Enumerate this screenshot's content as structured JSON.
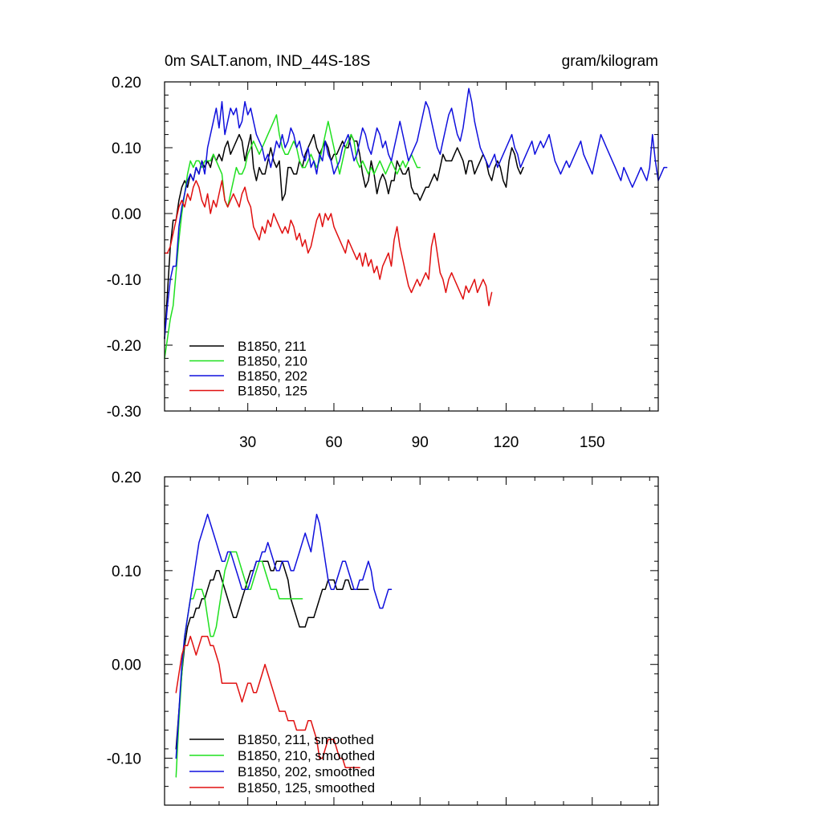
{
  "colors": {
    "B1850_211": "#000000",
    "B1850_210": "#1fe01f",
    "B1850_202": "#1010dd",
    "B1850_125": "#e01010"
  },
  "chart_data": [
    {
      "type": "line",
      "title": "0m SALT.anom, IND_44S-18S",
      "units": "gram/kilogram",
      "xlim": [
        1,
        173
      ],
      "ylim": [
        -0.3,
        0.2
      ],
      "xticks": [
        30,
        60,
        90,
        120,
        150
      ],
      "xtick_labels": [
        "30",
        "60",
        "90",
        "120",
        "150"
      ],
      "yticks": [
        0.2,
        0.1,
        0.0,
        -0.1,
        -0.2,
        -0.3
      ],
      "ytick_labels": [
        "0.20",
        "0.10",
        "0.00",
        "-0.10",
        "-0.20",
        "-0.30"
      ],
      "legend_position": "bottom-left",
      "series": [
        {
          "name": "B1850, 211",
          "color_key": "B1850_211",
          "x_start": 1,
          "values": [
            -0.19,
            -0.12,
            -0.05,
            -0.01,
            -0.01,
            0.02,
            0.04,
            0.05,
            0.04,
            0.06,
            0.05,
            0.07,
            0.06,
            0.08,
            0.07,
            0.08,
            0.07,
            0.09,
            0.08,
            0.09,
            0.08,
            0.1,
            0.11,
            0.09,
            0.1,
            0.11,
            0.12,
            0.11,
            0.08,
            0.1,
            0.12,
            0.07,
            0.05,
            0.07,
            0.06,
            0.06,
            0.08,
            0.1,
            0.08,
            0.07,
            0.08,
            0.02,
            0.03,
            0.07,
            0.07,
            0.06,
            0.06,
            0.08,
            0.07,
            0.09,
            0.1,
            0.11,
            0.12,
            0.1,
            0.09,
            0.1,
            0.11,
            0.1,
            0.08,
            0.09,
            0.09,
            0.1,
            0.11,
            0.1,
            0.1,
            0.12,
            0.11,
            0.11,
            0.09,
            0.06,
            0.04,
            0.05,
            0.08,
            0.06,
            0.03,
            0.05,
            0.06,
            0.05,
            0.03,
            0.05,
            0.05,
            0.08,
            0.07,
            0.06,
            0.06,
            0.07,
            0.04,
            0.03,
            0.03,
            0.02,
            0.03,
            0.04,
            0.04,
            0.05,
            0.06,
            0.05,
            0.07,
            0.09,
            0.08,
            0.08,
            0.08,
            0.09,
            0.1,
            0.09,
            0.08,
            0.06,
            0.08,
            0.08,
            0.06,
            0.07,
            0.08,
            0.09,
            0.08,
            0.06,
            0.05,
            0.07,
            0.08,
            0.07,
            0.05,
            0.04,
            0.08,
            0.1,
            0.09,
            0.07,
            0.06,
            0.07
          ]
        },
        {
          "name": "B1850, 210",
          "color_key": "B1850_210",
          "x_start": 1,
          "values": [
            -0.22,
            -0.19,
            -0.16,
            -0.14,
            -0.09,
            -0.04,
            0.0,
            0.03,
            0.06,
            0.08,
            0.07,
            0.08,
            0.08,
            0.07,
            0.08,
            0.08,
            0.08,
            0.09,
            0.08,
            0.07,
            0.06,
            0.02,
            0.01,
            0.03,
            0.05,
            0.07,
            0.06,
            0.06,
            0.07,
            0.09,
            0.1,
            0.11,
            0.1,
            0.09,
            0.1,
            0.11,
            0.12,
            0.13,
            0.14,
            0.15,
            0.12,
            0.1,
            0.09,
            0.09,
            0.1,
            0.11,
            0.1,
            0.08,
            0.07,
            0.07,
            0.08,
            0.09,
            0.08,
            0.07,
            0.08,
            0.1,
            0.12,
            0.14,
            0.12,
            0.1,
            0.08,
            0.06,
            0.08,
            0.1,
            0.11,
            0.12,
            0.11,
            0.08,
            0.07,
            0.08,
            0.07,
            0.06,
            0.07,
            0.06,
            0.07,
            0.08,
            0.07,
            0.06,
            0.07,
            0.08,
            0.07,
            0.06,
            0.07,
            0.08,
            0.07,
            0.08,
            0.09,
            0.08,
            0.07,
            0.07
          ]
        },
        {
          "name": "B1850, 202",
          "color_key": "B1850_202",
          "x_start": 1,
          "values": [
            -0.19,
            -0.14,
            -0.1,
            -0.08,
            -0.08,
            -0.02,
            0.01,
            0.03,
            0.05,
            0.06,
            0.05,
            0.07,
            0.06,
            0.08,
            0.06,
            0.1,
            0.12,
            0.14,
            0.16,
            0.13,
            0.17,
            0.12,
            0.14,
            0.16,
            0.15,
            0.16,
            0.13,
            0.14,
            0.17,
            0.15,
            0.16,
            0.14,
            0.12,
            0.11,
            0.1,
            0.08,
            0.09,
            0.07,
            0.09,
            0.11,
            0.1,
            0.12,
            0.1,
            0.11,
            0.13,
            0.12,
            0.1,
            0.11,
            0.09,
            0.08,
            0.1,
            0.07,
            0.08,
            0.06,
            0.09,
            0.08,
            0.11,
            0.09,
            0.08,
            0.06,
            0.07,
            0.08,
            0.1,
            0.11,
            0.12,
            0.1,
            0.08,
            0.09,
            0.11,
            0.13,
            0.12,
            0.1,
            0.09,
            0.11,
            0.13,
            0.12,
            0.1,
            0.11,
            0.09,
            0.08,
            0.1,
            0.12,
            0.14,
            0.12,
            0.1,
            0.08,
            0.09,
            0.1,
            0.11,
            0.13,
            0.15,
            0.17,
            0.16,
            0.14,
            0.12,
            0.1,
            0.09,
            0.11,
            0.13,
            0.15,
            0.16,
            0.14,
            0.12,
            0.11,
            0.13,
            0.16,
            0.19,
            0.17,
            0.14,
            0.12,
            0.1,
            0.09,
            0.08,
            0.07,
            0.08,
            0.09,
            0.07,
            0.08,
            0.09,
            0.1,
            0.11,
            0.12,
            0.1,
            0.09,
            0.07,
            0.08,
            0.09,
            0.1,
            0.11,
            0.09,
            0.1,
            0.11,
            0.1,
            0.11,
            0.12,
            0.1,
            0.08,
            0.07,
            0.06,
            0.07,
            0.08,
            0.07,
            0.08,
            0.09,
            0.1,
            0.11,
            0.09,
            0.08,
            0.07,
            0.06,
            0.08,
            0.1,
            0.12,
            0.11,
            0.1,
            0.09,
            0.08,
            0.07,
            0.06,
            0.05,
            0.07,
            0.06,
            0.05,
            0.04,
            0.05,
            0.06,
            0.07,
            0.06,
            0.05,
            0.07,
            0.12,
            0.08,
            0.05,
            0.06,
            0.07,
            0.07
          ]
        },
        {
          "name": "B1850, 125",
          "color_key": "B1850_125",
          "x_start": 1,
          "values": [
            -0.06,
            -0.06,
            -0.05,
            -0.03,
            -0.01,
            0.01,
            0.02,
            0.01,
            0.03,
            0.02,
            0.04,
            0.05,
            0.04,
            0.02,
            0.01,
            0.03,
            0.0,
            0.02,
            0.01,
            0.03,
            0.05,
            0.02,
            0.01,
            0.02,
            0.03,
            0.02,
            0.01,
            0.03,
            0.04,
            0.02,
            0.01,
            -0.02,
            -0.03,
            -0.04,
            -0.02,
            -0.03,
            -0.01,
            -0.02,
            0.0,
            -0.01,
            -0.02,
            -0.03,
            -0.02,
            -0.03,
            -0.01,
            -0.02,
            -0.04,
            -0.03,
            -0.05,
            -0.04,
            -0.06,
            -0.05,
            -0.03,
            -0.01,
            0.0,
            -0.02,
            0.0,
            -0.01,
            0.0,
            -0.02,
            -0.03,
            -0.04,
            -0.05,
            -0.06,
            -0.04,
            -0.05,
            -0.06,
            -0.07,
            -0.06,
            -0.08,
            -0.06,
            -0.08,
            -0.07,
            -0.09,
            -0.08,
            -0.1,
            -0.08,
            -0.07,
            -0.06,
            -0.08,
            -0.04,
            -0.02,
            -0.05,
            -0.07,
            -0.09,
            -0.11,
            -0.12,
            -0.11,
            -0.1,
            -0.11,
            -0.1,
            -0.09,
            -0.1,
            -0.05,
            -0.03,
            -0.06,
            -0.09,
            -0.1,
            -0.12,
            -0.1,
            -0.09,
            -0.1,
            -0.11,
            -0.12,
            -0.13,
            -0.11,
            -0.12,
            -0.11,
            -0.1,
            -0.12,
            -0.11,
            -0.1,
            -0.11,
            -0.14,
            -0.12
          ]
        }
      ]
    },
    {
      "type": "line",
      "title": "",
      "xlim": [
        1,
        173
      ],
      "ylim": [
        -0.15,
        0.2
      ],
      "xticks": [
        30,
        60,
        90,
        120,
        150
      ],
      "xtick_labels": [],
      "yticks": [
        0.2,
        0.1,
        0.0,
        -0.1
      ],
      "ytick_labels": [
        "0.20",
        "0.10",
        "0.00",
        "-0.10"
      ],
      "legend_position": "bottom-left",
      "series": [
        {
          "name": "B1850, 211, smoothed",
          "color_key": "B1850_211",
          "x_start": 5,
          "values": [
            -0.09,
            -0.05,
            -0.01,
            0.02,
            0.04,
            0.05,
            0.05,
            0.06,
            0.06,
            0.07,
            0.07,
            0.08,
            0.09,
            0.09,
            0.1,
            0.1,
            0.09,
            0.08,
            0.07,
            0.06,
            0.05,
            0.05,
            0.06,
            0.07,
            0.08,
            0.09,
            0.1,
            0.1,
            0.11,
            0.11,
            0.11,
            0.11,
            0.11,
            0.1,
            0.1,
            0.11,
            0.11,
            0.11,
            0.1,
            0.09,
            0.07,
            0.06,
            0.05,
            0.04,
            0.04,
            0.04,
            0.05,
            0.05,
            0.05,
            0.06,
            0.07,
            0.08,
            0.08,
            0.09,
            0.09,
            0.09,
            0.08,
            0.08,
            0.08,
            0.09,
            0.09,
            0.08,
            0.08,
            0.08,
            0.08,
            0.08,
            0.08,
            0.08
          ]
        },
        {
          "name": "B1850, 210, smoothed",
          "color_key": "B1850_210",
          "x_start": 5,
          "values": [
            -0.12,
            -0.06,
            -0.01,
            0.03,
            0.05,
            0.07,
            0.07,
            0.08,
            0.08,
            0.08,
            0.07,
            0.05,
            0.03,
            0.03,
            0.04,
            0.06,
            0.08,
            0.1,
            0.11,
            0.12,
            0.12,
            0.12,
            0.11,
            0.1,
            0.09,
            0.08,
            0.08,
            0.09,
            0.1,
            0.11,
            0.11,
            0.1,
            0.09,
            0.08,
            0.08,
            0.08,
            0.07,
            0.07,
            0.07,
            0.07,
            0.07,
            0.07,
            0.07,
            0.07,
            0.07
          ]
        },
        {
          "name": "B1850, 202, smoothed",
          "color_key": "B1850_202",
          "x_start": 5,
          "values": [
            -0.1,
            -0.05,
            0.0,
            0.03,
            0.05,
            0.07,
            0.09,
            0.11,
            0.13,
            0.14,
            0.15,
            0.16,
            0.15,
            0.14,
            0.13,
            0.12,
            0.11,
            0.11,
            0.12,
            0.12,
            0.11,
            0.1,
            0.09,
            0.08,
            0.08,
            0.08,
            0.09,
            0.1,
            0.11,
            0.11,
            0.12,
            0.12,
            0.13,
            0.12,
            0.11,
            0.1,
            0.1,
            0.11,
            0.11,
            0.11,
            0.1,
            0.1,
            0.11,
            0.12,
            0.13,
            0.14,
            0.13,
            0.12,
            0.14,
            0.16,
            0.15,
            0.13,
            0.11,
            0.09,
            0.08,
            0.08,
            0.09,
            0.1,
            0.11,
            0.11,
            0.1,
            0.09,
            0.08,
            0.08,
            0.09,
            0.09,
            0.1,
            0.11,
            0.1,
            0.08,
            0.07,
            0.06,
            0.06,
            0.07,
            0.08,
            0.08
          ]
        },
        {
          "name": "B1850, 125, smoothed",
          "color_key": "B1850_125",
          "x_start": 5,
          "values": [
            -0.03,
            -0.01,
            0.01,
            0.02,
            0.02,
            0.03,
            0.02,
            0.01,
            0.02,
            0.03,
            0.03,
            0.03,
            0.02,
            0.02,
            0.01,
            0.0,
            -0.02,
            -0.02,
            -0.02,
            -0.02,
            -0.02,
            -0.02,
            -0.03,
            -0.04,
            -0.03,
            -0.02,
            -0.02,
            -0.03,
            -0.03,
            -0.02,
            -0.01,
            -0.0,
            -0.01,
            -0.02,
            -0.03,
            -0.04,
            -0.05,
            -0.05,
            -0.05,
            -0.06,
            -0.06,
            -0.06,
            -0.07,
            -0.07,
            -0.07,
            -0.07,
            -0.06,
            -0.06,
            -0.07,
            -0.08,
            -0.1,
            -0.1,
            -0.09,
            -0.08,
            -0.08,
            -0.08,
            -0.09,
            -0.1,
            -0.1,
            -0.11,
            -0.11,
            -0.11,
            -0.11,
            -0.11,
            -0.11
          ]
        }
      ]
    }
  ]
}
